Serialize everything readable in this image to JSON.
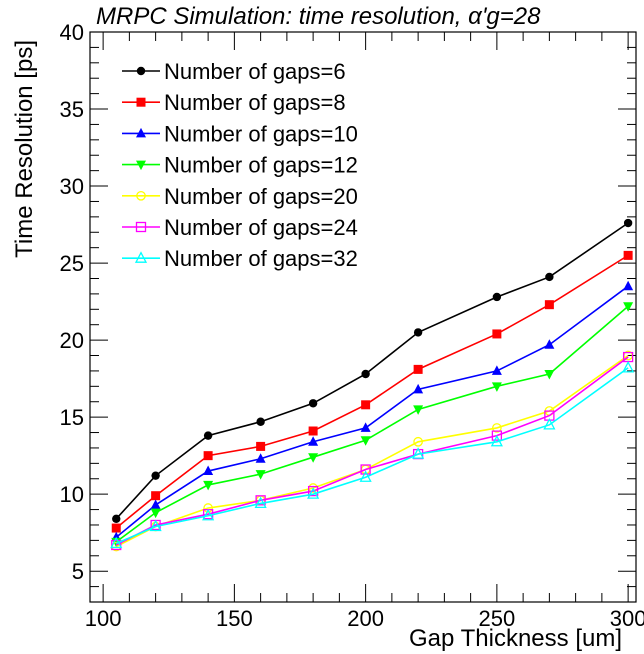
{
  "chart_data": {
    "type": "line",
    "title": "MRPC Simulation: time resolution, α'g=28",
    "xlabel": "Gap Thickness [um]",
    "ylabel": "Time Resolution [ps]",
    "xlim": [
      95,
      303
    ],
    "ylim": [
      3,
      40
    ],
    "xticks": [
      100,
      150,
      200,
      250,
      300
    ],
    "yticks": [
      5,
      10,
      15,
      20,
      25,
      30,
      35,
      40
    ],
    "grid": false,
    "legend_position": "top-left",
    "x": [
      105,
      120,
      140,
      160,
      180,
      200,
      220,
      250,
      270,
      300
    ],
    "series": [
      {
        "name": "Number of gaps=6",
        "color": "#000000",
        "marker": "circle",
        "values": [
          8.4,
          11.2,
          13.8,
          14.7,
          15.9,
          17.8,
          20.5,
          22.8,
          24.1,
          27.6
        ]
      },
      {
        "name": "Number of gaps=8",
        "color": "#ff0000",
        "marker": "square",
        "values": [
          7.8,
          9.9,
          12.5,
          13.1,
          14.1,
          15.8,
          18.1,
          20.4,
          22.3,
          25.5
        ]
      },
      {
        "name": "Number of gaps=10",
        "color": "#0000ff",
        "marker": "triangle-up",
        "values": [
          7.2,
          9.3,
          11.5,
          12.3,
          13.4,
          14.3,
          16.8,
          18.0,
          19.7,
          23.5
        ]
      },
      {
        "name": "Number of gaps=12",
        "color": "#00ff00",
        "marker": "triangle-down",
        "values": [
          6.9,
          8.8,
          10.6,
          11.3,
          12.4,
          13.5,
          15.5,
          17.0,
          17.8,
          22.2
        ]
      },
      {
        "name": "Number of gaps=20",
        "color": "#ffff00",
        "marker": "open-circle",
        "values": [
          6.6,
          7.9,
          9.1,
          9.6,
          10.4,
          11.6,
          13.4,
          14.3,
          15.4,
          19.0
        ]
      },
      {
        "name": "Number of gaps=24",
        "color": "#ff00ff",
        "marker": "open-square",
        "values": [
          6.7,
          8.0,
          8.7,
          9.6,
          10.2,
          11.6,
          12.6,
          13.8,
          15.1,
          18.9
        ]
      },
      {
        "name": "Number of gaps=32",
        "color": "#00ffff",
        "marker": "open-triangle-up",
        "values": [
          6.8,
          7.9,
          8.6,
          9.4,
          10.0,
          11.1,
          12.6,
          13.4,
          14.5,
          18.2
        ]
      }
    ]
  }
}
